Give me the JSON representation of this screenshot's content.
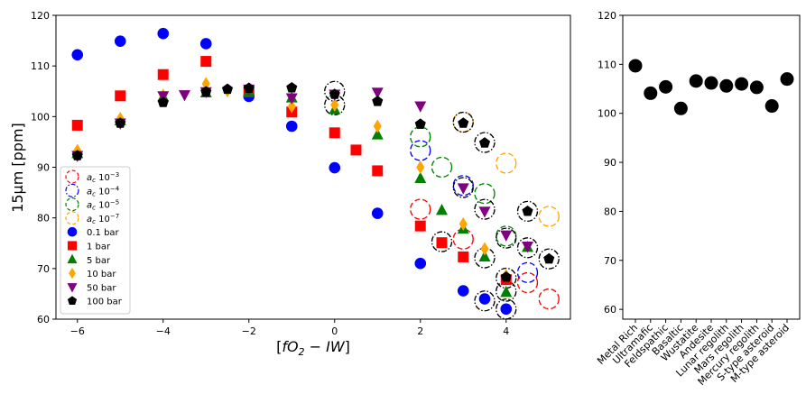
{
  "chart_data": [
    {
      "type": "scatter",
      "xlabel": "[fO2 - IW]",
      "xlabel_parts": {
        "open": "[",
        "f": "f",
        "O": "O",
        "sub": "2",
        "rest": " − IW",
        "close": "]"
      },
      "ylabel": "15µm [ppm]",
      "xlim": [
        -6.5,
        5.5
      ],
      "ylim": [
        60,
        120
      ],
      "xticks": [
        -6,
        -4,
        -2,
        0,
        2,
        4
      ],
      "xtick_labels": [
        "−6",
        "−4",
        "−2",
        "0",
        "2",
        "4"
      ],
      "yticks": [
        60,
        70,
        80,
        90,
        100,
        110,
        120
      ],
      "ytick_labels": [
        "60",
        "70",
        "80",
        "90",
        "100",
        "110",
        "120"
      ],
      "legend_position": "lower-left",
      "legend": [
        {
          "label_base": "a",
          "label_sub": "c",
          "label_text": " 10",
          "label_exp": "−3",
          "color": "#ff0000",
          "style": "dashed-circle"
        },
        {
          "label_base": "a",
          "label_sub": "c",
          "label_text": " 10",
          "label_exp": "−4",
          "color": "#0000ff",
          "style": "dashdot-circle"
        },
        {
          "label_base": "a",
          "label_sub": "c",
          "label_text": " 10",
          "label_exp": "−5",
          "color": "#008000",
          "style": "dashed-circle"
        },
        {
          "label_base": "a",
          "label_sub": "c",
          "label_text": " 10",
          "label_exp": "−7",
          "color": "#ffa500",
          "style": "dashed-circle"
        },
        {
          "label": "0.1 bar",
          "color": "#0000ff",
          "marker": "circle"
        },
        {
          "label": "1 bar",
          "color": "#ff0000",
          "marker": "square"
        },
        {
          "label": "5 bar",
          "color": "#008000",
          "marker": "triangle-up"
        },
        {
          "label": "10 bar",
          "color": "#ffa500",
          "marker": "diamond"
        },
        {
          "label": "50 bar",
          "color": "#800080",
          "marker": "triangle-down"
        },
        {
          "label": "100 bar",
          "color": "#000000",
          "marker": "pentagon"
        }
      ],
      "series": [
        {
          "name": "0.1 bar",
          "marker": "circle",
          "color": "#0000ff",
          "x": [
            -6,
            -5,
            -4,
            -3,
            -2,
            -1,
            0,
            1,
            2,
            3,
            3.5,
            4
          ],
          "y": [
            112.2,
            114.9,
            116.4,
            114.4,
            104.0,
            98.1,
            89.9,
            80.9,
            71.0,
            65.6,
            64.0,
            62.0
          ]
        },
        {
          "name": "1 bar",
          "marker": "square",
          "color": "#ff0000",
          "x": [
            -6,
            -5,
            -4,
            -3,
            -2,
            -1,
            0,
            0.5,
            1,
            2,
            2.5,
            3,
            4
          ],
          "y": [
            98.3,
            104.1,
            108.3,
            110.9,
            104.9,
            100.9,
            96.8,
            93.4,
            89.3,
            78.4,
            75.1,
            72.3,
            67.8
          ]
        },
        {
          "name": "5 bar",
          "marker": "triangle-up",
          "color": "#008000",
          "x": [
            -6,
            -5,
            -4,
            -3,
            -2,
            -1,
            0,
            1,
            2,
            2.5,
            3,
            3.5,
            4,
            4.5
          ],
          "y": [
            92.7,
            99.2,
            103.9,
            104.7,
            104.9,
            103.7,
            101.4,
            96.4,
            87.8,
            81.5,
            77.8,
            72.3,
            65.3,
            74.2
          ]
        },
        {
          "name": "10 bar",
          "marker": "diamond",
          "color": "#ffa500",
          "x": [
            -6,
            -5,
            -4,
            -3,
            -2.5,
            -2,
            -1,
            0,
            1,
            2,
            3,
            3.5,
            4
          ],
          "y": [
            93.3,
            99.6,
            104.2,
            106.5,
            105.1,
            105.5,
            102.0,
            102.3,
            98.1,
            90.0,
            78.8,
            73.9,
            68.6
          ]
        },
        {
          "name": "50 bar",
          "marker": "triangle-down",
          "color": "#800080",
          "x": [
            -6,
            -5,
            -4,
            -3.5,
            -3,
            -2,
            -1,
            0,
            1,
            2,
            3,
            3.5,
            4,
            4.5
          ],
          "y": [
            92.3,
            98.7,
            104.1,
            104.3,
            104.9,
            105.4,
            103.7,
            104.4,
            104.8,
            102.1,
            85.9,
            81.3,
            76.6,
            74.4
          ]
        },
        {
          "name": "100 bar",
          "marker": "pentagon",
          "color": "#000000",
          "x": [
            -6,
            -5,
            -4,
            -3,
            -2.5,
            -2,
            -1,
            0,
            1,
            2,
            3,
            3.5,
            4,
            4.5,
            5
          ],
          "y": [
            92.3,
            98.7,
            102.8,
            104.9,
            105.4,
            105.6,
            105.7,
            104.4,
            103.0,
            98.5,
            98.7,
            94.8,
            68.3,
            81.3,
            71.9
          ]
        }
      ],
      "circles": [
        {
          "x": 0,
          "y": 102.3,
          "color": "#000000"
        },
        {
          "x": 0,
          "y": 105.0,
          "color": "#000000"
        },
        {
          "x": 2,
          "y": 96.0,
          "color": "#008000"
        },
        {
          "x": 2,
          "y": 93.3,
          "color": "#0000ff"
        },
        {
          "x": 2,
          "y": 81.7,
          "color": "#ff0000"
        },
        {
          "x": 2.5,
          "y": 90.0,
          "color": "#008000"
        },
        {
          "x": 2.5,
          "y": 75.3,
          "color": "#000000"
        },
        {
          "x": 3,
          "y": 98.9,
          "color": "#ffa500"
        },
        {
          "x": 3,
          "y": 98.9,
          "color": "#000000"
        },
        {
          "x": 3,
          "y": 86.4,
          "color": "#0000ff"
        },
        {
          "x": 3,
          "y": 86.0,
          "color": "#000000"
        },
        {
          "x": 3,
          "y": 75.8,
          "color": "#ff0000"
        },
        {
          "x": 3.5,
          "y": 94.9,
          "color": "#000000"
        },
        {
          "x": 3.5,
          "y": 84.8,
          "color": "#008000"
        },
        {
          "x": 3.5,
          "y": 81.7,
          "color": "#000000"
        },
        {
          "x": 3.5,
          "y": 72.1,
          "color": "#000000"
        },
        {
          "x": 3.5,
          "y": 63.6,
          "color": "#000000"
        },
        {
          "x": 4,
          "y": 90.8,
          "color": "#ffa500"
        },
        {
          "x": 4,
          "y": 76.4,
          "color": "#008000"
        },
        {
          "x": 4,
          "y": 76.0,
          "color": "#000000"
        },
        {
          "x": 4,
          "y": 68.1,
          "color": "#000000"
        },
        {
          "x": 4,
          "y": 65.5,
          "color": "#000000"
        },
        {
          "x": 4,
          "y": 62.0,
          "color": "#000000"
        },
        {
          "x": 4.5,
          "y": 81.3,
          "color": "#000000"
        },
        {
          "x": 4.5,
          "y": 74.1,
          "color": "#000000"
        },
        {
          "x": 4.5,
          "y": 69.2,
          "color": "#0000ff"
        },
        {
          "x": 4.5,
          "y": 67.2,
          "color": "#ff0000"
        },
        {
          "x": 5,
          "y": 80.3,
          "color": "#ffa500"
        },
        {
          "x": 5,
          "y": 71.9,
          "color": "#000000"
        },
        {
          "x": 5,
          "y": 64.0,
          "color": "#ff0000"
        }
      ]
    },
    {
      "type": "scatter",
      "ylim": [
        58,
        120
      ],
      "yticks": [
        60,
        70,
        80,
        90,
        100,
        110,
        120
      ],
      "ytick_labels": [
        "60",
        "70",
        "80",
        "90",
        "100",
        "110",
        "120"
      ],
      "color": "#000000",
      "categories": [
        "Metal Rich",
        "Ultramafic",
        "Feldspathic",
        "Basaltic",
        "Wustatite",
        "Andesite",
        "Lunar regolith",
        "Mars regolith",
        "Mercury regolith",
        "S-type asteroid",
        "M-type asteroid"
      ],
      "values": [
        109.7,
        104.1,
        105.4,
        101.0,
        106.6,
        106.2,
        105.6,
        106.0,
        105.3,
        101.5,
        107.0
      ]
    }
  ]
}
